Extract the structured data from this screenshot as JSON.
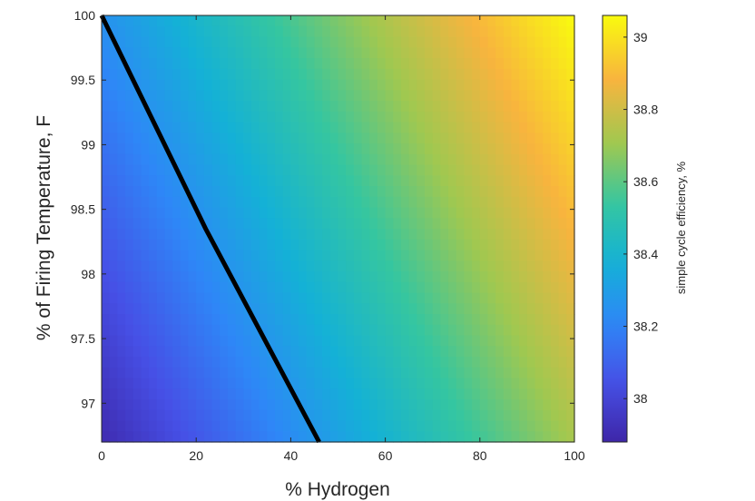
{
  "chart_data": {
    "type": "heatmap",
    "title": "",
    "xlabel": "% Hydrogen",
    "ylabel": "% of Firing Temperature, F",
    "xlim": [
      0,
      100
    ],
    "ylim": [
      96.7,
      100
    ],
    "x_ticks": [
      0,
      20,
      40,
      60,
      80,
      100
    ],
    "y_ticks": [
      97,
      97.5,
      98,
      98.5,
      99,
      99.5,
      100
    ],
    "x_tick_labels": [
      "0",
      "20",
      "40",
      "60",
      "80",
      "100"
    ],
    "y_tick_labels": [
      "97",
      "97.5",
      "98",
      "98.5",
      "99",
      "99.5",
      "100"
    ],
    "grid": false,
    "colormap": "parula",
    "colorbar": {
      "label": "simple cycle efficiency, %",
      "clim": [
        37.88,
        39.06
      ],
      "ticks": [
        38,
        38.2,
        38.4,
        38.6,
        38.8,
        39
      ],
      "tick_labels": [
        "38",
        "38.2",
        "38.4",
        "38.6",
        "38.8",
        "39"
      ],
      "placement": "right"
    },
    "surface": {
      "description_values": "efficiency at corners",
      "corners": [
        {
          "x": 0,
          "y": 96.7,
          "z": 37.9
        },
        {
          "x": 0,
          "y": 100,
          "z": 38.25
        },
        {
          "x": 100,
          "y": 96.7,
          "z": 38.72
        },
        {
          "x": 100,
          "y": 100,
          "z": 39.06
        }
      ]
    },
    "contour_line": {
      "color": "#000000",
      "points": [
        {
          "x": 0,
          "y": 100
        },
        {
          "x": 22,
          "y": 98.35
        },
        {
          "x": 46,
          "y": 96.7
        }
      ]
    }
  }
}
